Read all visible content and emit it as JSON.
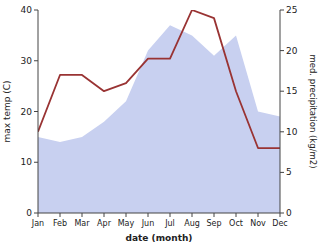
{
  "chart_data": {
    "type": "area",
    "categories": [
      "Jan",
      "Feb",
      "Mar",
      "Apr",
      "May",
      "Jun",
      "Jul",
      "Aug",
      "Sep",
      "Oct",
      "Nov",
      "Dec"
    ],
    "series": [
      {
        "type": "area",
        "color": "#c8d0f0",
        "values": [
          15,
          14,
          15,
          18,
          22,
          32,
          37,
          35,
          31,
          35,
          20,
          19
        ]
      },
      {
        "type": "line",
        "color": "#993333",
        "axis": "y2",
        "values": [
          10,
          17,
          17,
          15,
          16,
          19,
          19,
          25,
          24,
          15,
          8,
          8
        ]
      }
    ],
    "xlabel": "date (month)",
    "ylabel": "max temp (C)",
    "y2label": "med. precipitation (kg/m2)",
    "ylim": [
      0,
      40
    ],
    "yticks": [
      0,
      10,
      20,
      30,
      40
    ],
    "y2lim": [
      0,
      25
    ],
    "y2ticks": [
      0,
      5,
      10,
      15,
      20,
      25
    ],
    "grid": false
  }
}
